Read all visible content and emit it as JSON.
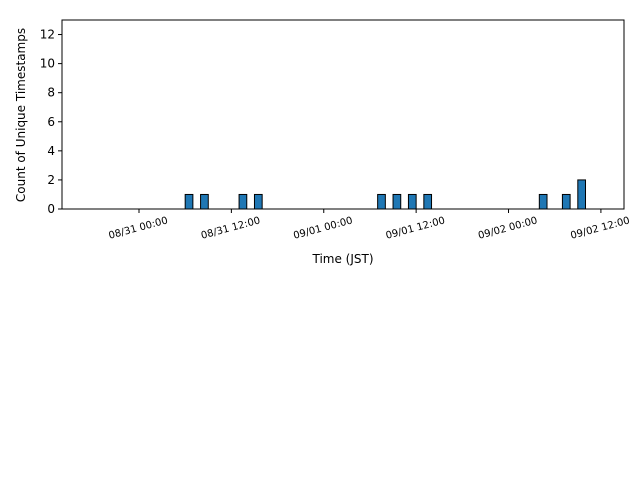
{
  "chart_data": {
    "type": "bar",
    "title": "",
    "xlabel": "Time (JST)",
    "ylabel": "Count of Unique Timestamps",
    "x_tick_labels": [
      "08/31 00:00",
      "08/31 12:00",
      "09/01 00:00",
      "09/01 12:00",
      "09/02 00:00",
      "09/02 12:00"
    ],
    "x_tick_hours": [
      0,
      12,
      24,
      36,
      48,
      60
    ],
    "x_range_hours": [
      -10,
      63
    ],
    "ylim": [
      0,
      13
    ],
    "y_ticks": [
      0,
      2,
      4,
      6,
      8,
      10,
      12
    ],
    "bar_width_hours": 1,
    "bars": [
      {
        "x_hours": 6.5,
        "value": 1
      },
      {
        "x_hours": 8.5,
        "value": 1
      },
      {
        "x_hours": 13.5,
        "value": 1
      },
      {
        "x_hours": 15.5,
        "value": 1
      },
      {
        "x_hours": 31.5,
        "value": 1
      },
      {
        "x_hours": 33.5,
        "value": 1
      },
      {
        "x_hours": 35.5,
        "value": 1
      },
      {
        "x_hours": 37.5,
        "value": 1
      },
      {
        "x_hours": 52.5,
        "value": 1
      },
      {
        "x_hours": 55.5,
        "value": 1
      },
      {
        "x_hours": 57.5,
        "value": 2
      }
    ],
    "bar_color": "#1f77b4",
    "edge_color": "#000000",
    "grid": false,
    "legend": "none"
  }
}
